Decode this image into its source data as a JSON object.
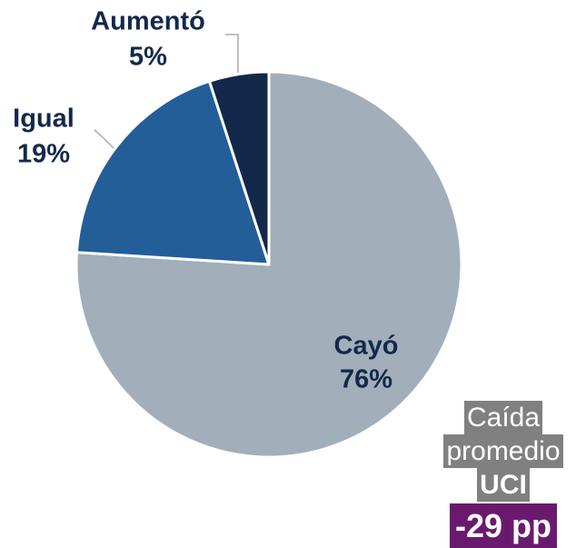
{
  "chart_data": {
    "type": "pie",
    "categories": [
      "Cayó",
      "Igual",
      "Aumentó"
    ],
    "values": [
      76,
      19,
      5
    ],
    "value_labels": [
      "76%",
      "19%",
      "5%"
    ],
    "colors": [
      "#a2aeba",
      "#235e99",
      "#13294b"
    ],
    "annotation": {
      "lines": [
        "Caída",
        "promedio",
        "UCI"
      ],
      "highlight": "-29 pp"
    }
  }
}
